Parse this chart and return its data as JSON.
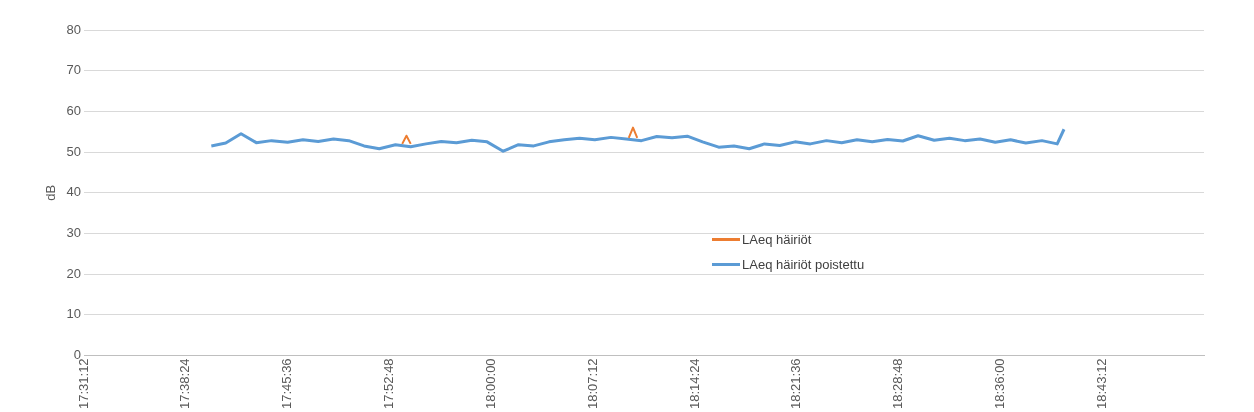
{
  "chart_data": {
    "type": "line",
    "ylabel": "dB",
    "xlim": [
      17.52,
      18.84
    ],
    "xticks": [
      {
        "value": 17.52,
        "label": "17:31:12"
      },
      {
        "value": 17.64,
        "label": "17:38:24"
      },
      {
        "value": 17.76,
        "label": "17:45:36"
      },
      {
        "value": 17.88,
        "label": "17:52:48"
      },
      {
        "value": 18.0,
        "label": "18:00:00"
      },
      {
        "value": 18.12,
        "label": "18:07:12"
      },
      {
        "value": 18.24,
        "label": "18:14:24"
      },
      {
        "value": 18.36,
        "label": "18:21:36"
      },
      {
        "value": 18.48,
        "label": "18:28:48"
      },
      {
        "value": 18.6,
        "label": "18:36:00"
      },
      {
        "value": 18.72,
        "label": "18:43:12"
      }
    ],
    "ylim": [
      0,
      80
    ],
    "yticks": [
      0,
      10,
      20,
      30,
      40,
      50,
      60,
      70,
      80
    ],
    "grid": "y",
    "legend": "bottom right",
    "marker": "none",
    "line_style": "solid",
    "series": [
      {
        "name": "LAeq häiriöt",
        "color": "#ed7d31",
        "x": [
          17.895,
          17.9,
          17.905,
          17.95,
          18.162,
          18.167,
          18.172
        ],
        "values": [
          52,
          54,
          52,
          null,
          53.5,
          56,
          53.5
        ]
      },
      {
        "name": "LAeq häiriöt poistettu",
        "color": "#5b9bd5",
        "x": [
          17.67,
          17.687,
          17.705,
          17.723,
          17.741,
          17.76,
          17.778,
          17.796,
          17.814,
          17.832,
          17.85,
          17.868,
          17.887,
          17.905,
          17.923,
          17.941,
          17.959,
          17.977,
          17.995,
          18.014,
          18.032,
          18.05,
          18.068,
          18.086,
          18.104,
          18.122,
          18.141,
          18.159,
          18.177,
          18.195,
          18.213,
          18.231,
          18.249,
          18.268,
          18.286,
          18.304,
          18.322,
          18.34,
          18.358,
          18.376,
          18.395,
          18.413,
          18.431,
          18.449,
          18.467,
          18.485,
          18.503,
          18.522,
          18.54,
          18.558,
          18.576,
          18.594,
          18.612,
          18.63,
          18.649,
          18.667,
          18.675
        ],
        "values": [
          51.5,
          52.2,
          54.5,
          52.3,
          52.8,
          52.4,
          53.0,
          52.6,
          53.2,
          52.8,
          51.5,
          50.8,
          51.8,
          51.3,
          52.0,
          52.6,
          52.3,
          52.9,
          52.5,
          50.2,
          51.8,
          51.5,
          52.5,
          53.0,
          53.4,
          53.0,
          53.6,
          53.2,
          52.8,
          53.8,
          53.5,
          53.9,
          52.5,
          51.2,
          51.5,
          50.8,
          52.0,
          51.6,
          52.5,
          52.0,
          52.8,
          52.3,
          53.0,
          52.5,
          53.1,
          52.7,
          54.0,
          52.9,
          53.4,
          52.8,
          53.2,
          52.4,
          53.0,
          52.2,
          52.8,
          52.0,
          55.6
        ]
      }
    ]
  }
}
